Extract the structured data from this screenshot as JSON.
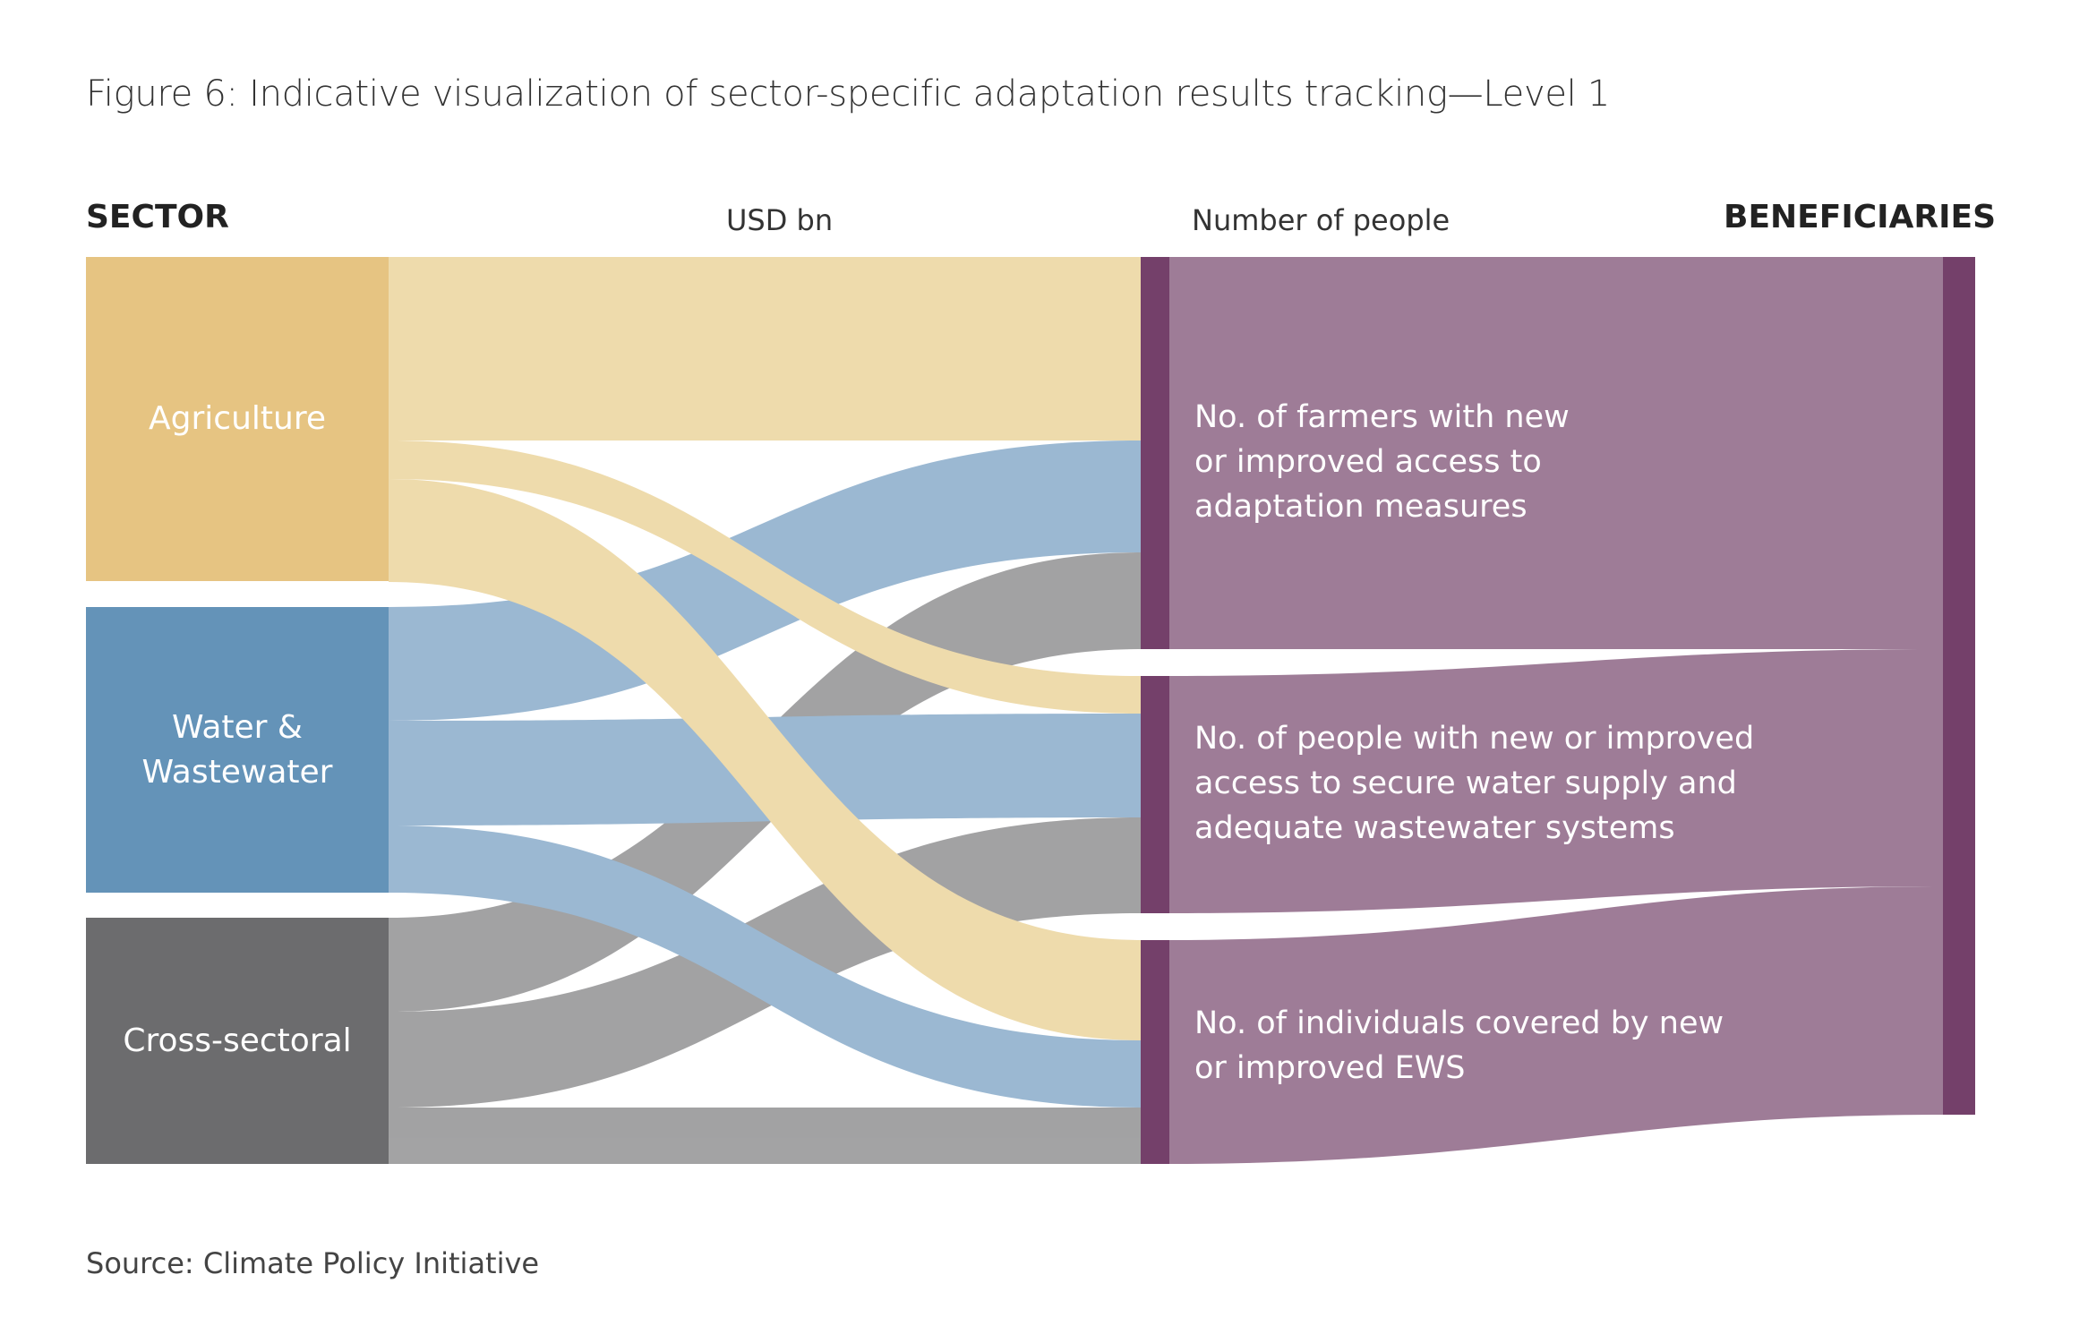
{
  "title": "Figure 6: Indicative visualization of sector-specific adaptation results tracking—Level 1",
  "columns": {
    "sector": "SECTOR",
    "usd": "USD bn",
    "people": "Number of people",
    "beneficiaries": "BENEFICIARIES"
  },
  "sectors": [
    {
      "label": "Agriculture",
      "color": "#e6c482",
      "flow_color": "#edd8a5"
    },
    {
      "label": "Water & Wastewater",
      "color": "#6493b8",
      "flow_color": "#93b3cf"
    },
    {
      "label": "Cross-sectoral",
      "color": "#6c6c6e",
      "flow_color": "#9b9b9c"
    }
  ],
  "outcomes": [
    {
      "label": "No. of farmers with new\nor improved access to\nadaptation measures",
      "color": "#9e7c97",
      "bar_color": "#74406a"
    },
    {
      "label": "No. of people with new or improved\naccess to secure water supply and\nadequate wastewater systems",
      "color": "#9e7c97",
      "bar_color": "#74406a"
    },
    {
      "label": "No. of individuals covered by new\nor improved EWS",
      "color": "#9e7c97",
      "bar_color": "#74406a"
    }
  ],
  "flows": [
    {
      "from": "Agriculture",
      "to": "No. of farmers",
      "value": 20
    },
    {
      "from": "Agriculture",
      "to": "No. of people (water)",
      "value": 4
    },
    {
      "from": "Agriculture",
      "to": "No. of individuals (EWS)",
      "value": 11
    },
    {
      "from": "Water & Wastewater",
      "to": "No. of farmers",
      "value": 12
    },
    {
      "from": "Water & Wastewater",
      "to": "No. of people (water)",
      "value": 11
    },
    {
      "from": "Water & Wastewater",
      "to": "No. of individuals (EWS)",
      "value": 7
    },
    {
      "from": "Cross-sectoral",
      "to": "No. of farmers",
      "value": 10
    },
    {
      "from": "Cross-sectoral",
      "to": "No. of people (water)",
      "value": 10
    },
    {
      "from": "Cross-sectoral",
      "to": "No. of individuals (EWS)",
      "value": 6
    }
  ],
  "source": "Source: Climate Policy Initiative"
}
